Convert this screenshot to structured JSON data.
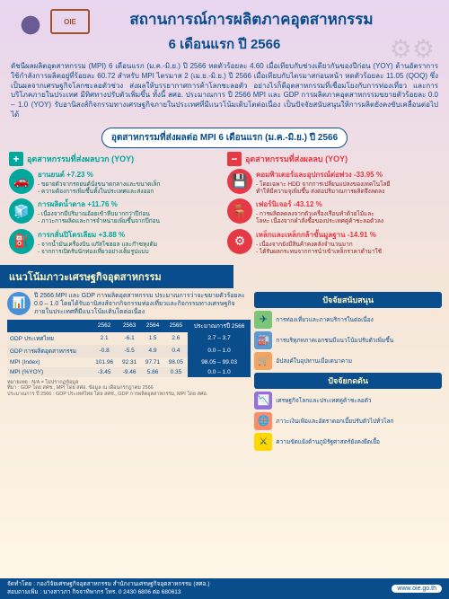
{
  "title": "สถานการณ์การผลิตภาคอุตสาหกรรม",
  "subtitle": "6 เดือนแรก ปี 2566",
  "intro": "ดัชนีผลผลิตอุตสาหกรรม (MPI) 6 เดือนแรก (ม.ค.-มิ.ย.) ปี 2566 หดตัวร้อยละ 4.60 เมื่อเทียบกับช่วงเดียวกันของปีก่อน (YOY) ด้านอัตราการใช้กำลังการผลิตอยู่ที่ร้อยละ 60.72 สำหรับ MPI ไตรมาส 2 (เม.ย.-มิ.ย.) ปี 2566 เมื่อเทียบกับไตรมาสก่อนหน้า หดตัวร้อยละ 11.05 (QOQ) ซึ่งเป็นผลจากเศรษฐกิจโลกชะลอตัวช่วง ส่งผลให้บรรยากาศการค้าโลกชะลอตัว อย่างไรก็ดีอุตสาหกรรมที่เชื่อมโยงกับการท่องเที่ยว และการบริโภคภายในประเทศ มีทิศทางปรับตัวเพิ่มขึ้น ทั้งนี้ สศอ. ประมาณการ ปี 2566 MPI และ GDP การผลิตภาคอุตสาหกรรมขยายตัวร้อยละ 0.0 – 1.0 (YOY) รับอานิสงส์กิจกรรมทางเศรษฐกิจภายในประเทศที่มีแนวโน้มเติบโตต่อเนื่อง เป็นปัจจัยสนับสนุนให้การผลิตยังคงขับเคลื่อนต่อไปได้",
  "sectionTitle": "อุตสาหกรรมที่ส่งผลต่อ MPI 6 เดือนแรก (ม.ค.-มิ.ย.) ปี 2566",
  "posHead": "อุตสาหกรรมที่ส่งผลบวก (YOY)",
  "negHead": "อุตสาหกรรมที่ส่งผลลบ (YOY)",
  "pos": [
    {
      "icon": "🚗",
      "title": "ยานยนต์ +7.23 %",
      "d1": "- ขยายตัวจากรถยนต์นั่งขนาดกลางและขนาดเล็ก",
      "d2": "- ความต้องการเพิ่มขึ้นทั้งในประเทศและส่งออก"
    },
    {
      "icon": "🧊",
      "title": "การผลิตน้ำตาล +11.76 %",
      "d1": "- เนื่องจากมีปริมาณอ้อยเข้าหีบมากกว่าปีก่อน",
      "d2": "- ภาวะการผลิตและการจำหน่ายเพิ่มขึ้นจากปีก่อน"
    },
    {
      "icon": "⛽",
      "title": "การกลั่นปิโตรเลียม +3.88 %",
      "d1": "- จากน้ำมันเครื่องบิน แก๊สโซฮอล และก๊าซหุงต้ม",
      "d2": "- จากการเปิดรับนักท่องเที่ยวอย่างเต็มรูปแบบ"
    }
  ],
  "neg": [
    {
      "icon": "💾",
      "title": "คอมพิวเตอร์และอุปกรณ์ต่อพ่วง -33.95 %",
      "d1": "- โดยเฉพาะ HDD จากการเปลี่ยนแปลงของเทคโนโลยี",
      "d2": "ทำให้มีความจุเพิ่มขึ้น ส่งต่อปริมาณการผลิตจึงลดลง"
    },
    {
      "icon": "🪑",
      "title": "เฟอร์นิเจอร์ -43.12 %",
      "d1": "- การผลิตลดลงจากตัวเครื่องเรือนทำด้วยไม้และ",
      "d2": "โลหะ เนื่องจากคำสั่งซื้อของประเทศคู่ค้าชะลอตัวลง"
    },
    {
      "icon": "⚙",
      "title": "เหล็กและเหล็กกล้าขั้นมูลฐาน -14.91 %",
      "d1": "- เนื่องจากยังมีสินค้าคงคลังจำนวนมาก",
      "d2": "- ได้รับผลกระทบจากการนำเข้าเหล็กราคาต่ำมาใช้"
    }
  ],
  "banner": "แนวโน้มภาวะเศรษฐกิจอุตสาหกรรม",
  "forecast": "ปี 2566 MPI และ GDP การผลิตอุตสาหกรรม ประมาณการว่าจะขยายตัวร้อยละ 0.0 – 1.0 โดยได้รับอานิสงส์จากกิจกรรมท่องเที่ยวและกิจกรรมทางเศรษฐกิจภายในประเทศที่มีแนวโน้มเติบโตต่อเนื่อง",
  "table": {
    "headers": [
      "",
      "2562",
      "2563",
      "2564",
      "2565",
      "ประมาณการปี 2566"
    ],
    "rows": [
      [
        "GDP ประเทศไทย",
        "2.1",
        "-6.1",
        "1.5",
        "2.6",
        "2.7 – 3.7"
      ],
      [
        "GDP การผลิตอุตสาหกรรม",
        "-0.8",
        "-5.5",
        "4.9",
        "0.4",
        "0.0 – 1.0"
      ],
      [
        "MPI (Index)",
        "101.96",
        "92.31",
        "97.71",
        "98.05",
        "98.05 – 99.03"
      ],
      [
        "MPI (%YOY)",
        "-3.45",
        "-9.46",
        "5.86",
        "0.35",
        "0.0 – 1.0"
      ]
    ]
  },
  "notes": "หมายเหตุ : N/A = ไม่ปรากฏข้อมูล\nที่มา : GDP โดย สศช., MPI โดย สศอ. ข้อมูล ณ เดือนกรกฎาคม 2566\nประมาณการ ปี 2566 : GDP ประเทศไทย โดย สศช., GDP การผลิตอุตสาหกรรม, MPI โดย สศอ.",
  "supHead": "ปัจจัยสนับสนุน",
  "sup": [
    "การท่องเที่ยวและภาคบริการในต่อเนื่อง",
    "การบริทุภทภาคเอกชนมีแนวโน้มปรับตัวเพิ่มขึ้น",
    "อัปสงค์ในอุปทานเมื่อเตนาคาม"
  ],
  "negHead2": "ปัจจัยกดดัน",
  "negF": [
    "เศรษฐกิจโลกและประเทศคู่ค้าชะลอตัว",
    "ภาวะเงินเฟ้อและอัตราดอกเบี้ยปรับตัวไปทั่วโลก",
    "ความขัดแย้งด้านภูมิรัฐศาสตร์ยังคงยืดเยื้อ"
  ],
  "footer1": "จัดทำโดย : กองวิจัยเศรษฐกิจอุตสาหกรรม สำนักงานเศรษฐกิจอุตสาหกรรม (สศอ.)",
  "footer2": "สอบถามเพิ่ม : นางสาวภา กิจจาทิพากร โทร. 0 2430 6806 ต่อ 680613",
  "url": "www.oie.go.th"
}
